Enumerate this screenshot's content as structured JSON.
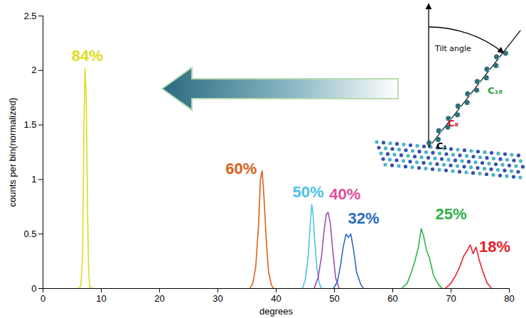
{
  "chart_data": {
    "type": "line",
    "xlabel": "degrees",
    "ylabel": "counts per bin(normalized)",
    "xlim": [
      0,
      80
    ],
    "xticks": [
      0,
      10,
      20,
      30,
      40,
      50,
      60,
      70,
      80
    ],
    "ylim": [
      0,
      2.5
    ],
    "yticks": [
      0,
      0.5,
      1,
      1.5,
      2,
      2.5
    ],
    "grid": false,
    "series": [
      {
        "color": "#e0dc1e",
        "x": [
          6,
          6.5,
          6.8,
          7,
          7.2,
          7.4,
          7.6,
          7.8,
          8,
          8.5
        ],
        "values": [
          0,
          0.02,
          0.3,
          1.4,
          2.02,
          1.8,
          0.9,
          0.2,
          0.02,
          0
        ]
      },
      {
        "color": "#d9601a",
        "x": [
          35.5,
          36,
          36.5,
          37,
          37.3,
          37.6,
          37.9,
          38.3,
          38.7,
          39.2,
          39.6
        ],
        "values": [
          0,
          0.05,
          0.2,
          0.6,
          1.0,
          1.08,
          0.85,
          0.45,
          0.15,
          0.03,
          0
        ]
      },
      {
        "color": "#4ec3e6",
        "x": [
          44.5,
          45,
          45.5,
          45.8,
          46.1,
          46.3,
          46.6,
          47,
          47.4,
          47.8
        ],
        "values": [
          0,
          0.08,
          0.3,
          0.55,
          0.77,
          0.7,
          0.45,
          0.18,
          0.05,
          0
        ]
      },
      {
        "color": "#a04cb4",
        "x": [
          46.5,
          47.2,
          47.8,
          48.2,
          48.6,
          48.9,
          49.3,
          49.7,
          50.2,
          50.8
        ],
        "values": [
          0,
          0.1,
          0.3,
          0.52,
          0.68,
          0.7,
          0.6,
          0.35,
          0.1,
          0
        ]
      },
      {
        "color": "#2a6cc0",
        "x": [
          49.8,
          50.5,
          51,
          51.5,
          52,
          52.4,
          52.8,
          53.3,
          53.8,
          54.5,
          55
        ],
        "values": [
          0,
          0.06,
          0.2,
          0.38,
          0.5,
          0.47,
          0.5,
          0.35,
          0.15,
          0.04,
          0
        ]
      },
      {
        "color": "#2db34a",
        "x": [
          61.5,
          62.5,
          63.2,
          63.8,
          64.4,
          64.9,
          65.3,
          65.8,
          66.3,
          67,
          67.8,
          68.5
        ],
        "values": [
          0,
          0.05,
          0.15,
          0.25,
          0.38,
          0.55,
          0.48,
          0.35,
          0.28,
          0.12,
          0.04,
          0
        ]
      },
      {
        "color": "#e8202a",
        "x": [
          69,
          70,
          70.8,
          71.5,
          72.2,
          72.8,
          73.3,
          73.8,
          74.3,
          74.9,
          75.5,
          76.2,
          77
        ],
        "values": [
          0,
          0.05,
          0.12,
          0.2,
          0.3,
          0.35,
          0.4,
          0.32,
          0.38,
          0.25,
          0.15,
          0.05,
          0
        ]
      }
    ],
    "annotations": [
      {
        "text": "84%",
        "x": 7.6,
        "y": 2.13,
        "color": "#e0dc1e"
      },
      {
        "text": "60%",
        "x": 34,
        "y": 1.1,
        "color": "#d9601a"
      },
      {
        "text": "50%",
        "x": 45.5,
        "y": 0.88,
        "color": "#4ec3e6"
      },
      {
        "text": "40%",
        "x": 51.8,
        "y": 0.86,
        "color": "#e0509e"
      },
      {
        "text": "32%",
        "x": 55,
        "y": 0.64,
        "color": "#2a6cc0"
      },
      {
        "text": "25%",
        "x": 70,
        "y": 0.68,
        "color": "#2db34a"
      },
      {
        "text": "18%",
        "x": 77.5,
        "y": 0.38,
        "color": "#e8202a"
      }
    ],
    "inset": {
      "tilt_label": "Tilt angle",
      "atom_labels": [
        "C₁₆",
        "C₈",
        "C₁"
      ]
    }
  }
}
